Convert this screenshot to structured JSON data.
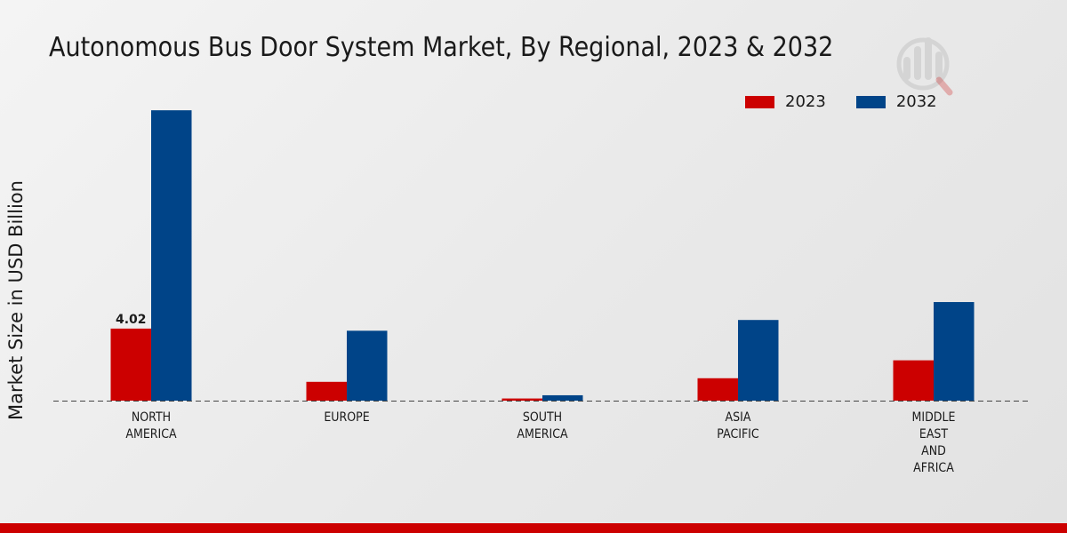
{
  "title": "Autonomous Bus Door System Market, By Regional, 2023 & 2032",
  "colors": {
    "s2023": "#cc0000",
    "s2032": "#004488",
    "axis": "#444444",
    "bottom_bar": "#cc0000"
  },
  "chart_data": {
    "type": "bar",
    "title": "Autonomous Bus Door System Market, By Regional, 2023 & 2032",
    "xlabel": "",
    "ylabel": "Market Size in USD Billion",
    "ylim": [
      0,
      17
    ],
    "grid": false,
    "legend_position": "top-right",
    "categories": [
      [
        "NORTH",
        "AMERICA"
      ],
      [
        "EUROPE"
      ],
      [
        "SOUTH",
        "AMERICA"
      ],
      [
        "ASIA",
        "PACIFIC"
      ],
      [
        "MIDDLE",
        "EAST",
        "AND",
        "AFRICA"
      ]
    ],
    "series": [
      {
        "name": "2023",
        "values": [
          4.02,
          1.05,
          0.12,
          1.25,
          2.25
        ]
      },
      {
        "name": "2032",
        "values": [
          16.2,
          3.9,
          0.3,
          4.5,
          5.5
        ]
      }
    ],
    "data_labels": [
      {
        "series": 0,
        "index": 0,
        "text": "4.02"
      }
    ]
  }
}
